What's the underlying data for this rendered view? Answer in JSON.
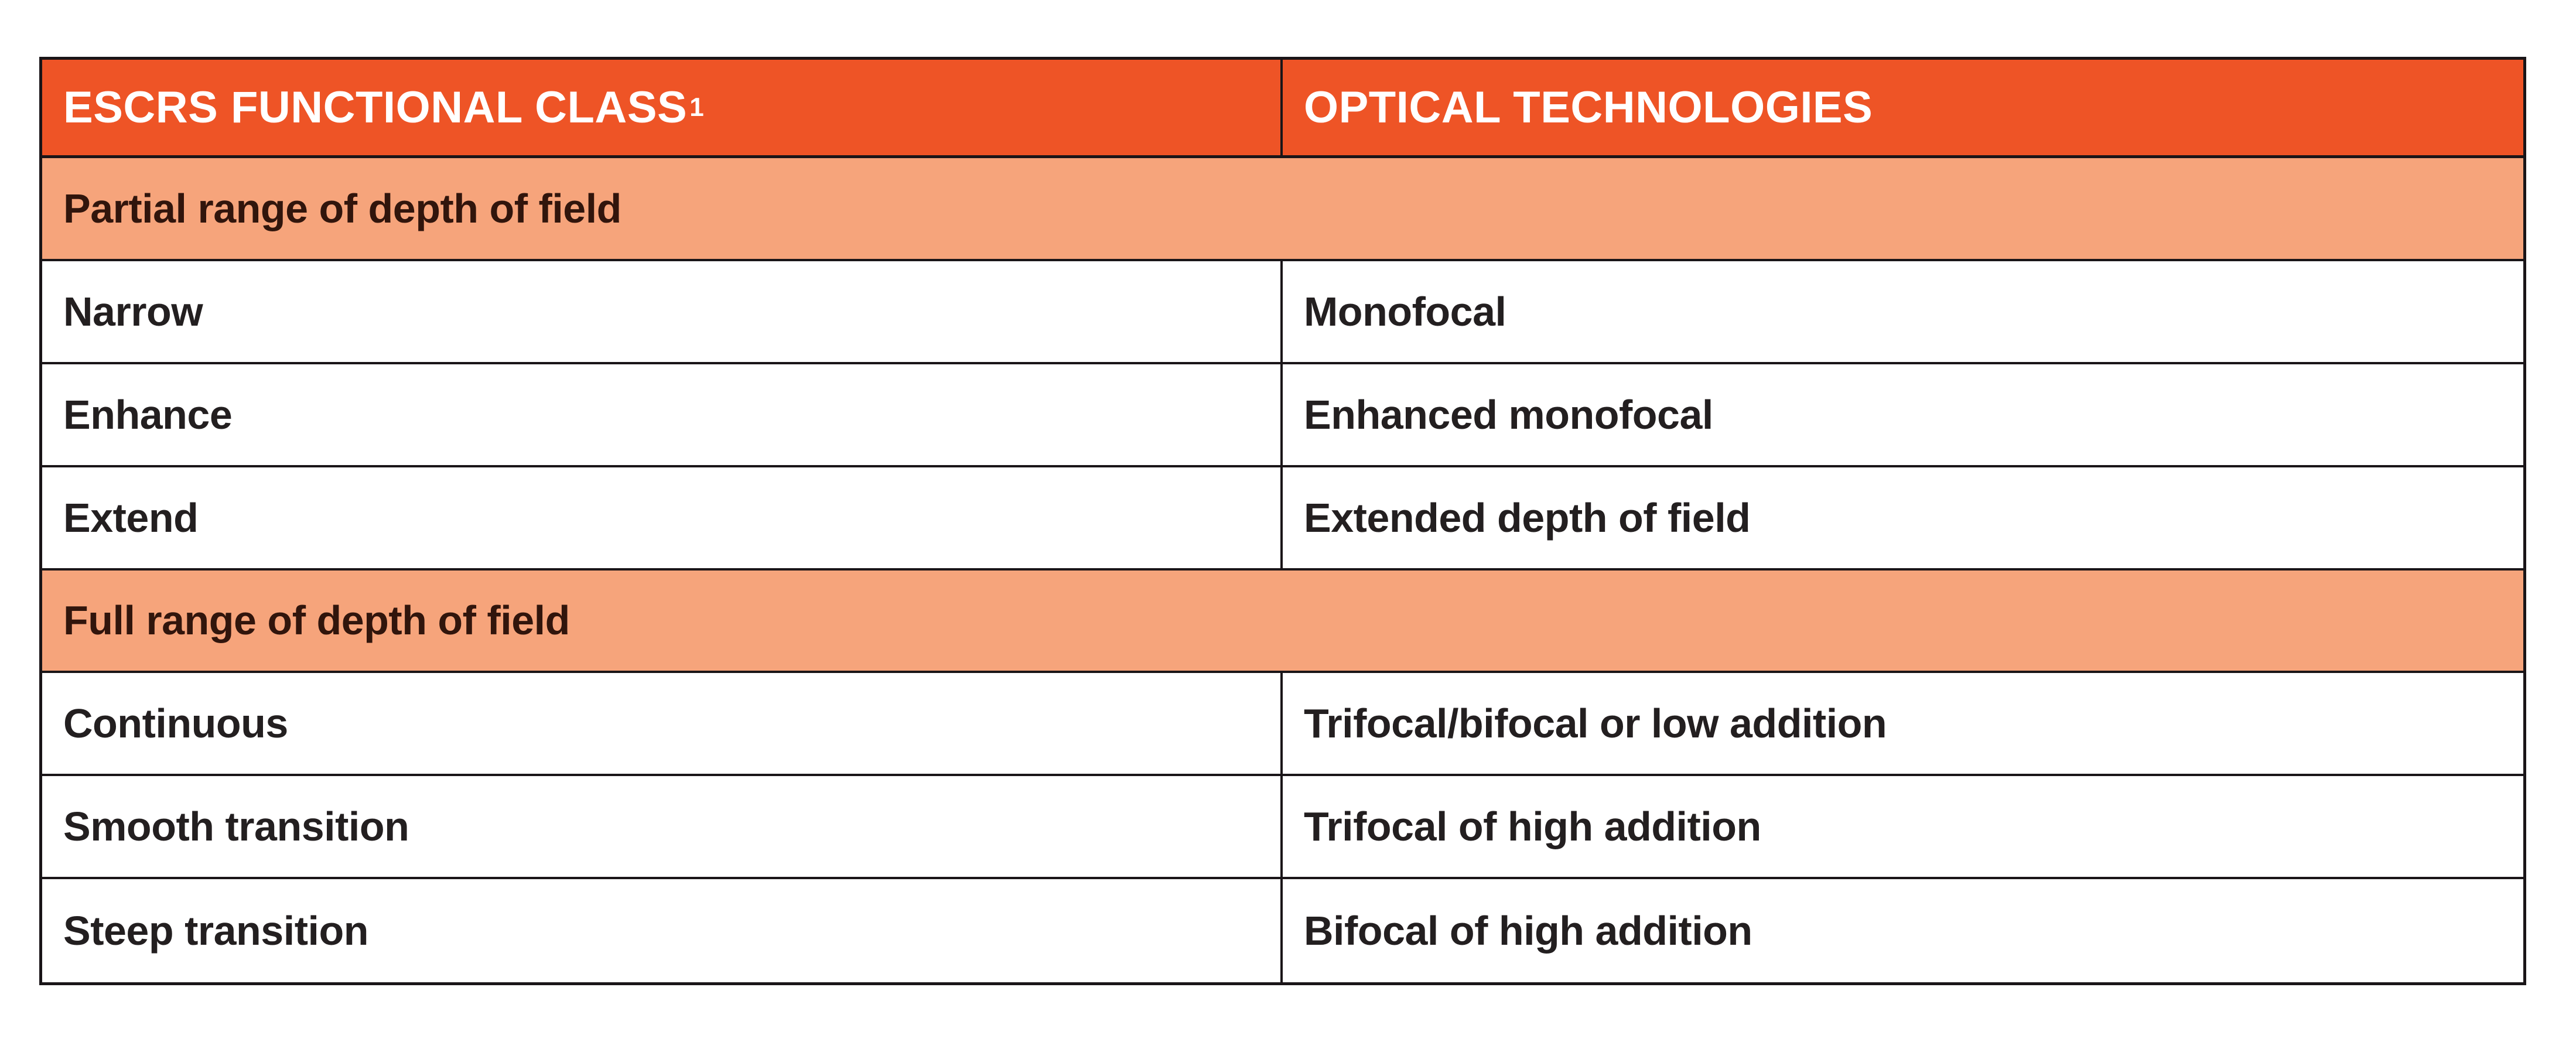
{
  "table": {
    "columns": [
      {
        "label": "ESCRS FUNCTIONAL CLASS",
        "superscript": "1"
      },
      {
        "label": "OPTICAL TECHNOLOGIES"
      }
    ],
    "groups": [
      {
        "label": "Partial range of depth of field",
        "rows": [
          [
            "Narrow",
            "Monofocal"
          ],
          [
            "Enhance",
            "Enhanced monofocal"
          ],
          [
            "Extend",
            "Extended depth of field"
          ]
        ]
      },
      {
        "label": "Full range of depth of field",
        "rows": [
          [
            "Continuous",
            "Trifocal/bifocal or low addition"
          ],
          [
            "Smooth transition",
            "Trifocal of high addition"
          ],
          [
            "Steep transition",
            "Bifocal of high addition"
          ]
        ]
      }
    ]
  },
  "colors": {
    "page_bg": "#FFFFFF",
    "header_bg": "#EE5426",
    "header_text": "#FFFFFF",
    "group_bg": "#F6A47B",
    "group_text": "#31150C",
    "body_bg": "#FFFFFF",
    "body_text": "#231F20",
    "border": "#1A1518"
  }
}
